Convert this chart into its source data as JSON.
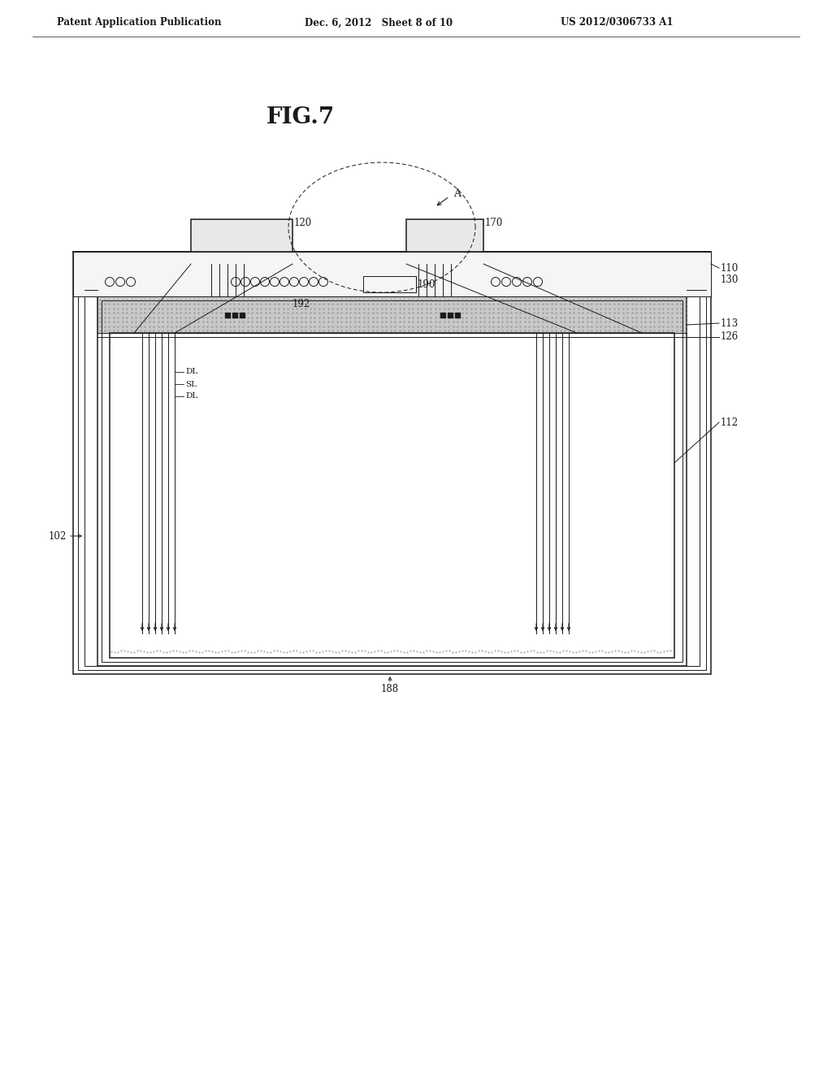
{
  "title": "FIG.7",
  "header_left": "Patent Application Publication",
  "header_mid": "Dec. 6, 2012   Sheet 8 of 10",
  "header_right": "US 2012/0306733 A1",
  "bg_color": "#ffffff",
  "line_color": "#1a1a1a",
  "label_102": "102",
  "label_110": "110",
  "label_112": "112",
  "label_113": "113",
  "label_120": "120",
  "label_126": "126",
  "label_130": "130",
  "label_170": "170",
  "label_188": "188",
  "label_190": "190",
  "label_192": "192",
  "label_A": "A",
  "label_DL1": "DL",
  "label_SL": "SL",
  "label_DL2": "DL"
}
